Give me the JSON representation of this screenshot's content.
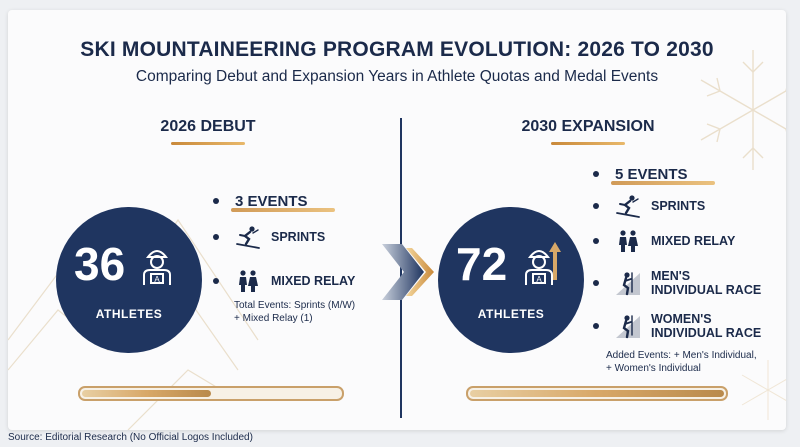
{
  "title": "SKI MOUNTAINEERING PROGRAM EVOLUTION: 2026 TO 2030",
  "subtitle": "Comparing Debut and Expansion Years in Athlete Quotas and Medal Events",
  "left": {
    "heading": "2026 DEBUT",
    "athletes_number": "36",
    "athletes_label": "ATHLETES",
    "events_heading": "3 EVENTS",
    "events": [
      {
        "icon": "skier-icon",
        "name": "SPRINTS"
      },
      {
        "icon": "couple-icon",
        "name": "MIXED RELAY"
      }
    ],
    "note_line1": "Total Events: Sprints (M/W)",
    "note_line2": "+ Mixed Relay (1)",
    "progress_fraction": 0.5
  },
  "right": {
    "heading": "2030 EXPANSION",
    "athletes_number": "72",
    "athletes_label": "ATHLETES",
    "events_heading": "5 EVENTS",
    "events": [
      {
        "icon": "skier-icon",
        "name": "SPRINTS"
      },
      {
        "icon": "couple-icon",
        "name": "MIXED RELAY"
      },
      {
        "icon": "climber-icon",
        "name_line1": "MEN'S",
        "name_line2": "INDIVIDUAL RACE"
      },
      {
        "icon": "climber-icon",
        "name_line1": "WOMEN'S",
        "name_line2": "INDIVIDUAL RACE"
      }
    ],
    "note_line1": "Added Events: + Men's Individual,",
    "note_line2": "+ Women's Individual",
    "progress_fraction": 1.0
  },
  "source": "Source: Editorial Research (No Official Logos Included)",
  "colors": {
    "navy": "#1f3560",
    "gold": "#c9893a",
    "background": "#fbfbfc"
  }
}
